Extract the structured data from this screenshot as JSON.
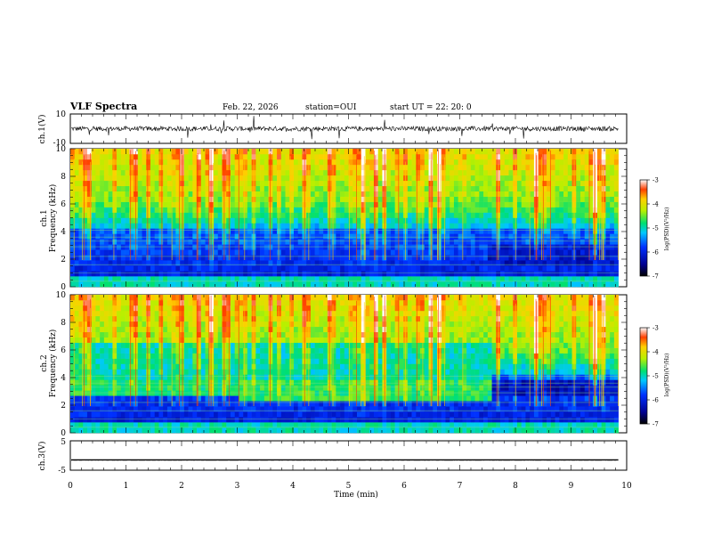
{
  "header": {
    "title": "VLF Spectra",
    "date": "Feb. 22, 2026",
    "station": "station=OUI",
    "start": "start UT = 22: 20: 0"
  },
  "chart_data": [
    {
      "type": "line",
      "name": "ch1-voltage",
      "ylabel": "ch.1(V)",
      "ylim": [
        -10,
        10
      ],
      "yticks": [
        "10",
        "-10"
      ],
      "baseline": 0
    },
    {
      "type": "heatmap",
      "name": "ch1-spectrogram",
      "ylabel_top": "ch.1",
      "ylabel_bottom": "Frequency (kHz)",
      "ylim": [
        0,
        10
      ],
      "yticks": [
        "0",
        "2",
        "4",
        "6",
        "8",
        "10"
      ],
      "colorbar": {
        "label": "log(PSD)(V²/Hz)",
        "range": [
          -7,
          -3
        ],
        "ticks": [
          "-3",
          "-4",
          "-5",
          "-6",
          "-7"
        ]
      }
    },
    {
      "type": "heatmap",
      "name": "ch2-spectrogram",
      "ylabel_top": "ch.2",
      "ylabel_bottom": "Frequency (kHz)",
      "ylim": [
        0,
        10
      ],
      "yticks": [
        "0",
        "2",
        "4",
        "6",
        "8",
        "10"
      ],
      "regime_change_min": 7.55,
      "colorbar": {
        "label": "log(PSD)(V²/Hz)",
        "range": [
          -7,
          -3
        ],
        "ticks": [
          "-3",
          "-4",
          "-5",
          "-6",
          "-7"
        ]
      }
    },
    {
      "type": "line",
      "name": "ch3-voltage",
      "ylabel": "ch.3(V)",
      "ylim": [
        -5,
        5
      ],
      "yticks": [
        "5",
        "-5"
      ],
      "baseline": -1.5
    }
  ],
  "xaxis": {
    "label": "Time (min)",
    "range": [
      0,
      10
    ],
    "data_end": 9.85,
    "ticks": [
      "0",
      "1",
      "2",
      "3",
      "4",
      "5",
      "6",
      "7",
      "8",
      "9",
      "10"
    ]
  }
}
